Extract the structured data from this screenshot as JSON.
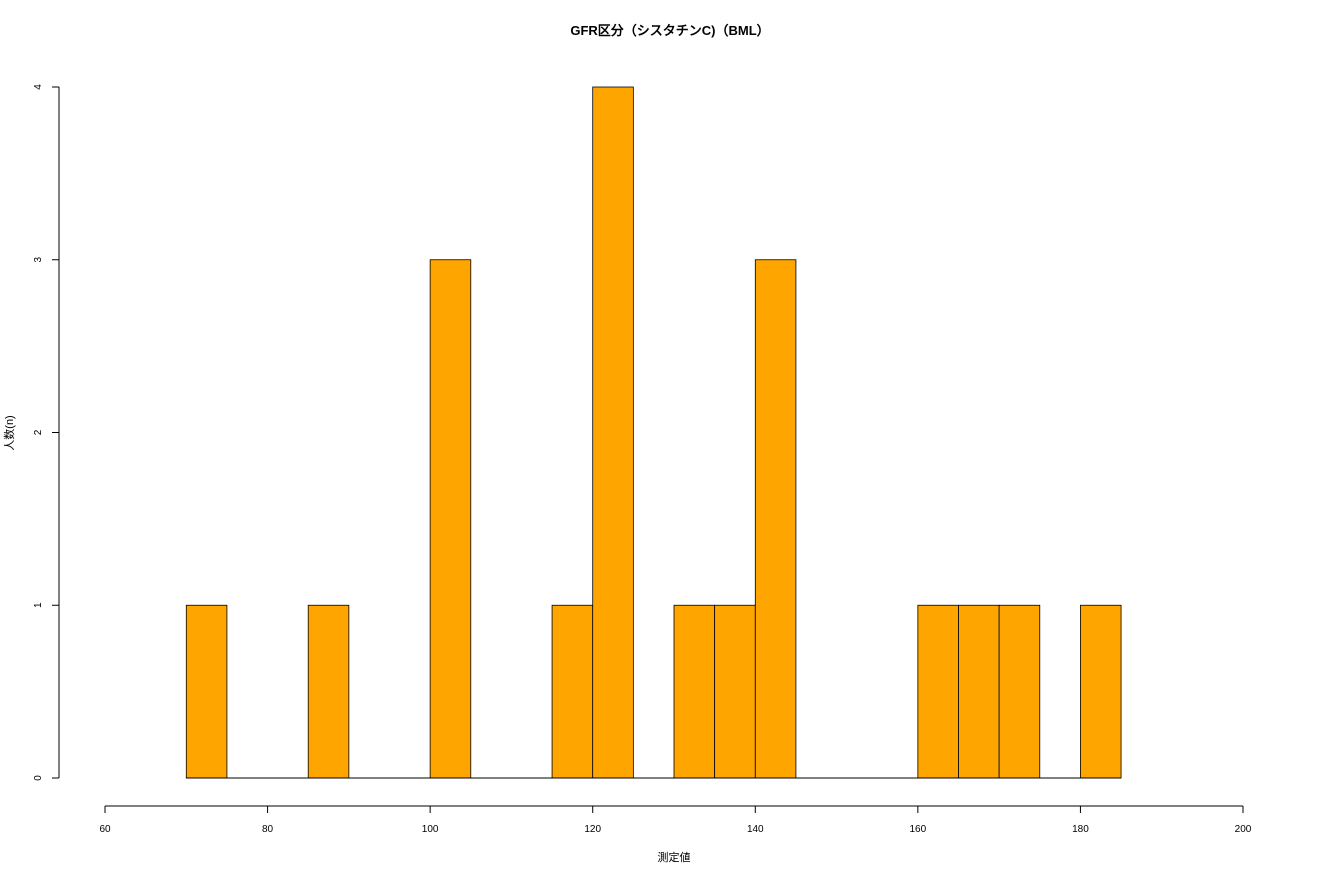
{
  "chart_data": {
    "type": "bar",
    "title": "GFR区分（シスタチンC)（BML）",
    "xlabel": "測定値",
    "ylabel": "人数(n)",
    "xlim": [
      60,
      200
    ],
    "ylim": [
      0,
      4
    ],
    "x_ticks": [
      "60",
      "80",
      "100",
      "120",
      "140",
      "160",
      "180",
      "200"
    ],
    "y_ticks": [
      "0",
      "1",
      "2",
      "3",
      "4"
    ],
    "bin_width": 5,
    "bins": [
      {
        "start": 70,
        "count": 1
      },
      {
        "start": 75,
        "count": 0
      },
      {
        "start": 80,
        "count": 0
      },
      {
        "start": 85,
        "count": 1
      },
      {
        "start": 90,
        "count": 0
      },
      {
        "start": 95,
        "count": 0
      },
      {
        "start": 100,
        "count": 3
      },
      {
        "start": 105,
        "count": 0
      },
      {
        "start": 110,
        "count": 0
      },
      {
        "start": 115,
        "count": 1
      },
      {
        "start": 120,
        "count": 4
      },
      {
        "start": 125,
        "count": 0
      },
      {
        "start": 130,
        "count": 1
      },
      {
        "start": 135,
        "count": 1
      },
      {
        "start": 140,
        "count": 3
      },
      {
        "start": 145,
        "count": 0
      },
      {
        "start": 150,
        "count": 0
      },
      {
        "start": 155,
        "count": 0
      },
      {
        "start": 160,
        "count": 1
      },
      {
        "start": 165,
        "count": 1
      },
      {
        "start": 170,
        "count": 1
      },
      {
        "start": 175,
        "count": 0
      },
      {
        "start": 180,
        "count": 1
      }
    ],
    "bar_color": "#FFA500",
    "grid": false,
    "legend": "none"
  }
}
